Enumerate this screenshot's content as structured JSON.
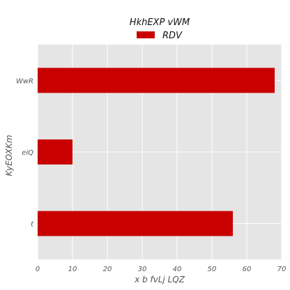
{
  "chart_data": {
    "type": "bar",
    "orientation": "horizontal",
    "title": "HkhEXP vWM",
    "xlabel": "x  b fvLj LQZ",
    "ylabel": "KyEOXKm",
    "categories": [
      "t",
      "eiQ",
      "WwR"
    ],
    "series": [
      {
        "name": "RDV",
        "values": [
          56,
          10,
          68
        ],
        "color": "#c80000"
      }
    ],
    "xlim": [
      0,
      70
    ],
    "xticks": [
      0,
      10,
      20,
      30,
      40,
      50,
      60,
      70
    ],
    "grid": true,
    "legend": "top-center",
    "background_color": "#e5e5e5",
    "grid_color": "#ffffff"
  }
}
